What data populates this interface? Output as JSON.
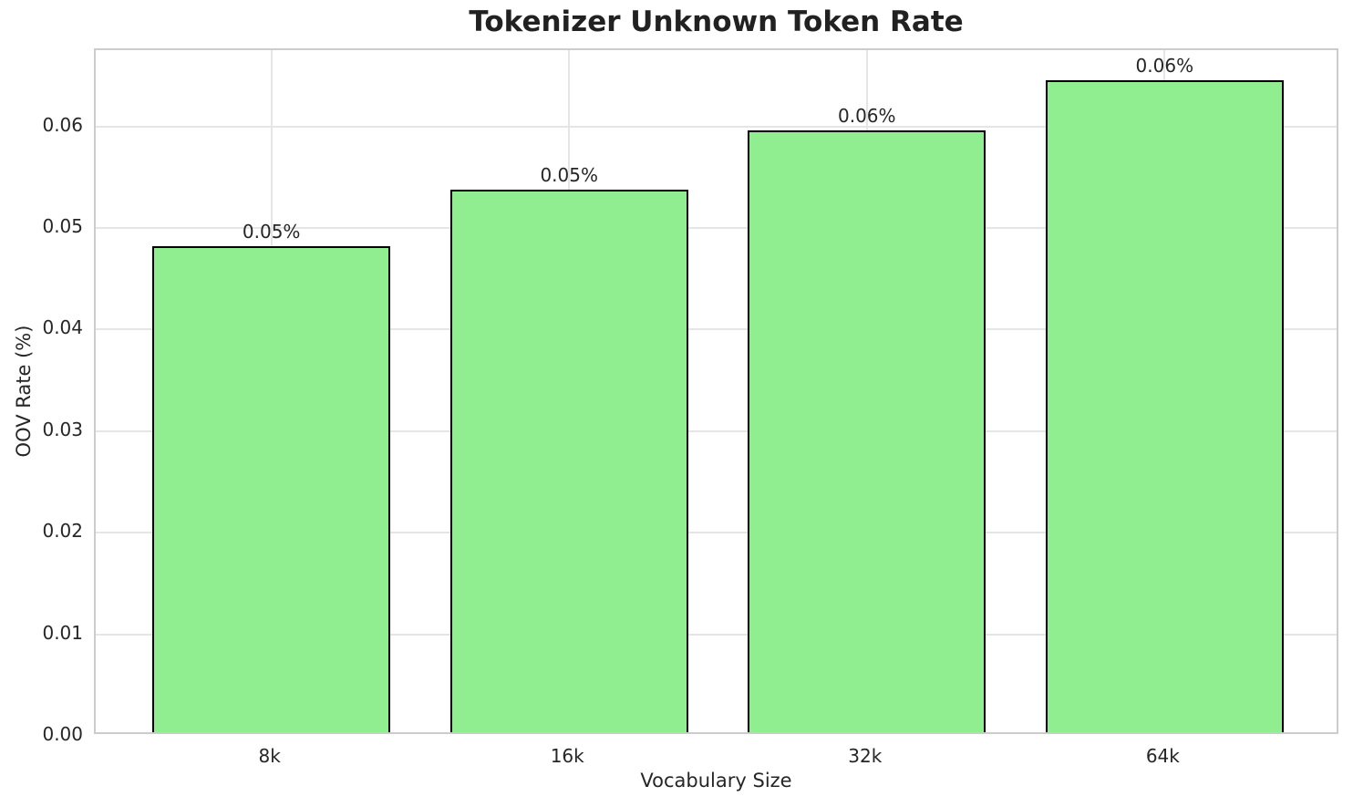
{
  "chart_data": {
    "type": "bar",
    "title": "Tokenizer Unknown Token Rate",
    "xlabel": "Vocabulary Size",
    "ylabel": "OOV Rate (%)",
    "categories": [
      "8k",
      "16k",
      "32k",
      "64k"
    ],
    "values": [
      0.0482,
      0.0538,
      0.0596,
      0.0645
    ],
    "bar_labels": [
      "0.05%",
      "0.05%",
      "0.06%",
      "0.06%"
    ],
    "ylim": [
      0,
      0.0675
    ],
    "yticks": [
      0.0,
      0.01,
      0.02,
      0.03,
      0.04,
      0.05,
      0.06
    ],
    "ytick_labels": [
      "0.00",
      "0.01",
      "0.02",
      "0.03",
      "0.04",
      "0.05",
      "0.06"
    ],
    "grid": true,
    "legend": null,
    "colors": {
      "bar_fill": "#90EE90",
      "bar_edge": "#000000",
      "grid": "#e5e5e5",
      "spine": "#cccccc",
      "text": "#262626",
      "title": "#212121",
      "background": "#ffffff"
    }
  }
}
